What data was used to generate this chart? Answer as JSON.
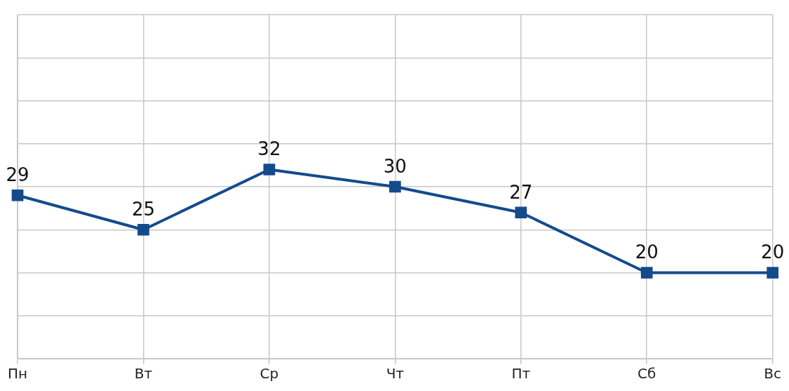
{
  "chart_data": {
    "type": "line",
    "categories": [
      "Пн",
      "Вт",
      "Ср",
      "Чт",
      "Пт",
      "Сб",
      "Вс"
    ],
    "series": [
      {
        "color": "#134b8c",
        "values": [
          29,
          25,
          32,
          30,
          27,
          20,
          20
        ]
      }
    ],
    "ylim": [
      10,
      50
    ],
    "yticks": [
      {
        "value": 10,
        "label": null
      },
      {
        "value": 15,
        "label": null
      },
      {
        "value": 20,
        "label": null
      },
      {
        "value": 25,
        "label": null
      },
      {
        "value": 30,
        "label": null
      },
      {
        "value": 35,
        "label": null
      },
      {
        "value": 40,
        "label": null
      },
      {
        "value": 45,
        "label": null
      },
      {
        "value": 50,
        "label": null
      }
    ],
    "tick_labels": "x",
    "grid": true,
    "marker": "square",
    "line_style": "solid",
    "data_labels": true
  }
}
